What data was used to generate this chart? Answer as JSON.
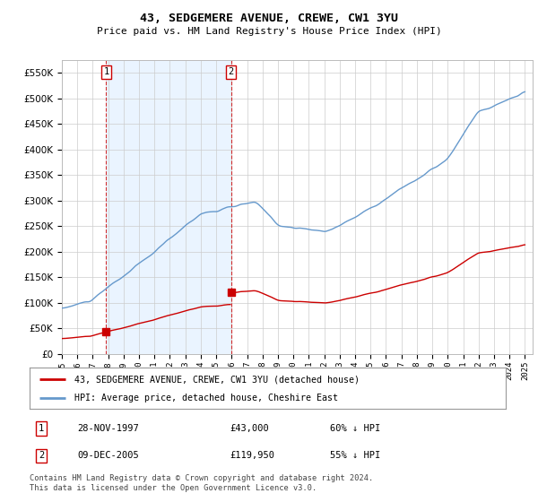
{
  "title": "43, SEDGEMERE AVENUE, CREWE, CW1 3YU",
  "subtitle": "Price paid vs. HM Land Registry's House Price Index (HPI)",
  "sale1_date": "28-NOV-1997",
  "sale1_price": 43000,
  "sale2_date": "09-DEC-2005",
  "sale2_price": 119950,
  "legend_line1": "43, SEDGEMERE AVENUE, CREWE, CW1 3YU (detached house)",
  "legend_line2": "HPI: Average price, detached house, Cheshire East",
  "footer": "Contains HM Land Registry data © Crown copyright and database right 2024.\nThis data is licensed under the Open Government Licence v3.0.",
  "hpi_color": "#aaccee",
  "hpi_line_color": "#6699cc",
  "price_color": "#cc0000",
  "shade_color": "#ddeeff",
  "ylim": [
    0,
    575000
  ],
  "yticks": [
    0,
    50000,
    100000,
    150000,
    200000,
    250000,
    300000,
    350000,
    400000,
    450000,
    500000,
    550000
  ],
  "xlim_start": 1995.3,
  "xlim_end": 2025.5,
  "xticks": [
    1995,
    1996,
    1997,
    1998,
    1999,
    2000,
    2001,
    2002,
    2003,
    2004,
    2005,
    2006,
    2007,
    2008,
    2009,
    2010,
    2011,
    2012,
    2013,
    2014,
    2015,
    2016,
    2017,
    2018,
    2019,
    2020,
    2021,
    2022,
    2023,
    2024,
    2025
  ]
}
